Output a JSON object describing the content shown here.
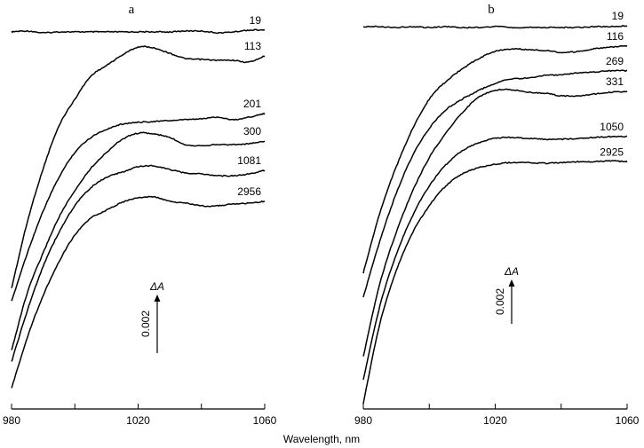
{
  "chart_data": [
    {
      "type": "line",
      "title": "a",
      "xlabel": "Wavelength, nm",
      "xlim": [
        980,
        1060
      ],
      "xticks": [
        980,
        1000,
        1020,
        1040,
        1060
      ],
      "xtick_labels": [
        "980",
        "1020",
        "1060"
      ],
      "ylabel": "ΔA",
      "scale_bar": {
        "label": "0.002",
        "value": 0.002
      },
      "grid": false,
      "x": [
        980,
        985,
        990,
        995,
        1000,
        1005,
        1010,
        1015,
        1020,
        1025,
        1030,
        1035,
        1040,
        1045,
        1050,
        1055,
        1060
      ],
      "series": [
        {
          "name": "19",
          "values": [
            0.01285,
            0.01288,
            0.01282,
            0.01285,
            0.01285,
            0.01285,
            0.01285,
            0.01285,
            0.01285,
            0.01285,
            0.01285,
            0.01288,
            0.01288,
            0.01282,
            0.01285,
            0.01291,
            0.01291
          ]
        },
        {
          "name": "113",
          "values": [
            0.00409,
            0.00636,
            0.00818,
            0.00964,
            0.01055,
            0.01133,
            0.0117,
            0.01206,
            0.01233,
            0.0123,
            0.01212,
            0.01194,
            0.01191,
            0.01188,
            0.01188,
            0.01182,
            0.01203
          ]
        },
        {
          "name": "201",
          "values": [
            0.00364,
            0.0053,
            0.00673,
            0.00788,
            0.00873,
            0.00924,
            0.00952,
            0.0097,
            0.00976,
            0.00979,
            0.00982,
            0.00985,
            0.00988,
            0.00994,
            0.00985,
            0.00994,
            0.01006
          ]
        },
        {
          "name": "300",
          "values": [
            0.00197,
            0.00394,
            0.0053,
            0.00652,
            0.00742,
            0.00818,
            0.00873,
            0.00918,
            0.00939,
            0.00936,
            0.00924,
            0.009,
            0.00897,
            0.009,
            0.009,
            0.00903,
            0.00912
          ]
        },
        {
          "name": "1081",
          "values": [
            0.00158,
            0.00333,
            0.00485,
            0.006,
            0.00691,
            0.00752,
            0.00788,
            0.00806,
            0.00824,
            0.00827,
            0.00815,
            0.00803,
            0.008,
            0.00794,
            0.00794,
            0.008,
            0.00812
          ]
        },
        {
          "name": "2956",
          "values": [
            0.00067,
            0.00242,
            0.00385,
            0.005,
            0.00591,
            0.00648,
            0.00676,
            0.00703,
            0.00718,
            0.00721,
            0.00706,
            0.007,
            0.00691,
            0.00691,
            0.00697,
            0.007,
            0.00706
          ]
        }
      ]
    },
    {
      "type": "line",
      "title": "b",
      "xlabel": "Wavelength, nm",
      "xlim": [
        980,
        1060
      ],
      "xticks": [
        980,
        1000,
        1020,
        1040,
        1060
      ],
      "xtick_labels": [
        "980",
        "1020",
        "1060"
      ],
      "ylabel": "ΔA",
      "scale_bar": {
        "label": "0.002",
        "value": 0.002
      },
      "grid": false,
      "x": [
        980,
        985,
        990,
        995,
        1000,
        1005,
        1010,
        1015,
        1020,
        1025,
        1030,
        1035,
        1040,
        1045,
        1050,
        1055,
        1060
      ],
      "series": [
        {
          "name": "19",
          "values": [
            0.0172,
            0.0172,
            0.01716,
            0.0172,
            0.01716,
            0.0172,
            0.01716,
            0.01716,
            0.0172,
            0.01716,
            0.01716,
            0.01716,
            0.01716,
            0.01716,
            0.0172,
            0.0172,
            0.01724
          ]
        },
        {
          "name": "116",
          "values": [
            0.00609,
            0.0088,
            0.01088,
            0.01261,
            0.01393,
            0.01472,
            0.01529,
            0.01576,
            0.01608,
            0.0162,
            0.01616,
            0.01612,
            0.01604,
            0.01608,
            0.0162,
            0.01628,
            0.01632
          ]
        },
        {
          "name": "269",
          "values": [
            0.005,
            0.00752,
            0.00968,
            0.0114,
            0.01261,
            0.01344,
            0.01393,
            0.01432,
            0.01464,
            0.01484,
            0.01488,
            0.015,
            0.01503,
            0.01511,
            0.01515,
            0.01521,
            0.01521
          ]
        },
        {
          "name": "331",
          "values": [
            0.00232,
            0.0056,
            0.00792,
            0.00979,
            0.01129,
            0.01239,
            0.01332,
            0.01401,
            0.01432,
            0.01436,
            0.01424,
            0.0142,
            0.01408,
            0.01408,
            0.01416,
            0.01424,
            0.01428
          ]
        },
        {
          "name": "1050",
          "values": [
            0.00128,
            0.00459,
            0.00692,
            0.00869,
            0.01001,
            0.01096,
            0.0116,
            0.01196,
            0.01216,
            0.0122,
            0.01216,
            0.01212,
            0.01212,
            0.01216,
            0.0122,
            0.01224,
            0.01224
          ]
        },
        {
          "name": "2925",
          "values": [
            0.0002,
            0.0038,
            0.0062,
            0.00792,
            0.00912,
            0.01001,
            0.01056,
            0.01084,
            0.011,
            0.01107,
            0.01107,
            0.01104,
            0.01107,
            0.01111,
            0.01111,
            0.01115,
            0.01111
          ]
        }
      ]
    }
  ],
  "colors": {
    "line": "#000000",
    "background": "#ffffff"
  }
}
